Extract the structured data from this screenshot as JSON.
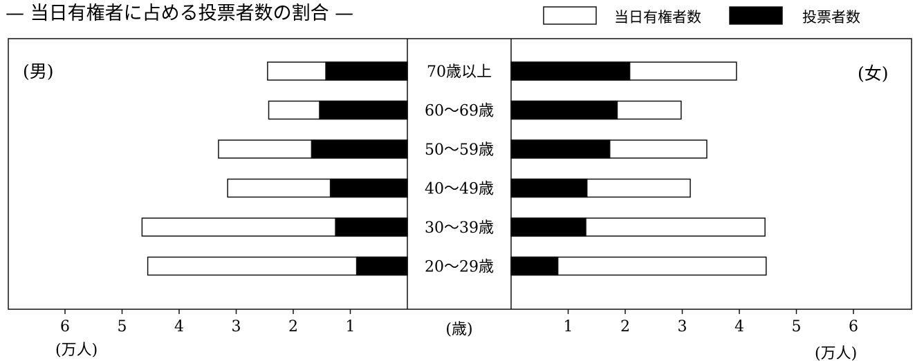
{
  "chart_data": {
    "type": "bar",
    "title": "— 当日有権者に占める投票者数の割合 —",
    "legend": [
      {
        "label": "当日有権者数",
        "color": "#ffffff"
      },
      {
        "label": "投票者数",
        "color": "#000000"
      }
    ],
    "legend_position": "top-right",
    "categories": [
      "70歳以上",
      "60〜69歳",
      "50〜59歳",
      "40〜49歳",
      "30〜39歳",
      "20〜29歳"
    ],
    "center_axis_label": "(歳)",
    "left_panel": {
      "label": "(男)",
      "unit": "(万人)",
      "series": [
        {
          "name": "当日有権者数",
          "values": [
            2.45,
            2.43,
            3.31,
            3.15,
            4.65,
            4.55
          ]
        },
        {
          "name": "投票者数",
          "values": [
            1.43,
            1.54,
            1.68,
            1.35,
            1.26,
            0.89
          ]
        }
      ]
    },
    "right_panel": {
      "label": "(女)",
      "unit": "(万人)",
      "series": [
        {
          "name": "当日有権者数",
          "values": [
            3.95,
            2.98,
            3.43,
            3.14,
            4.45,
            4.47
          ]
        },
        {
          "name": "投票者数",
          "values": [
            2.08,
            1.86,
            1.73,
            1.33,
            1.31,
            0.82
          ]
        }
      ]
    },
    "ticks": [
      1,
      2,
      3,
      4,
      5,
      6
    ],
    "xlim": [
      0,
      6.5
    ],
    "grid": false
  }
}
